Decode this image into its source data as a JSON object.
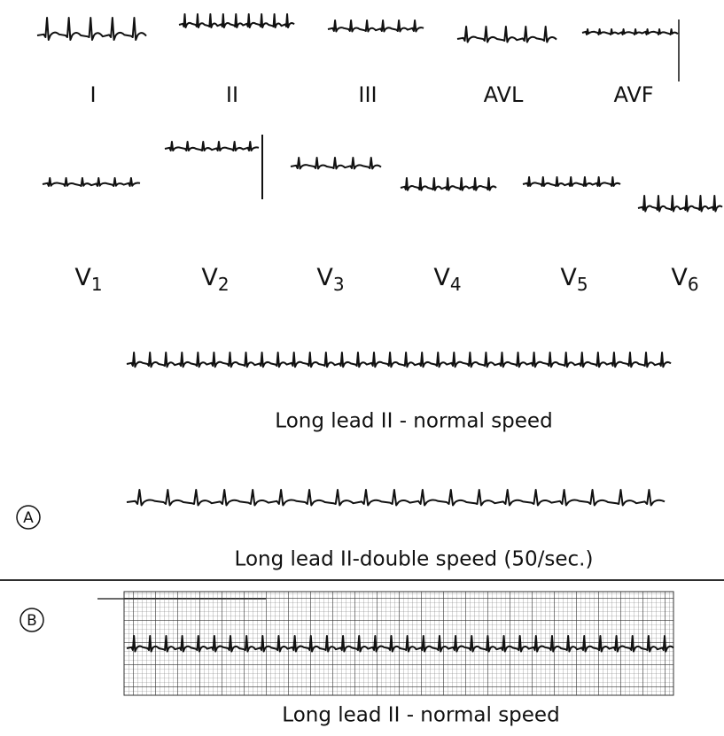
{
  "limb_leads": [
    "I",
    "II",
    "III",
    "AVL",
    "AVF"
  ],
  "chest_leads": [
    {
      "base": "V",
      "sub": "1"
    },
    {
      "base": "V",
      "sub": "2"
    },
    {
      "base": "V",
      "sub": "3"
    },
    {
      "base": "V",
      "sub": "4"
    },
    {
      "base": "V",
      "sub": "5"
    },
    {
      "base": "V",
      "sub": "6"
    }
  ],
  "panel_a": {
    "label": "A",
    "caption_normal": "Long lead II - normal speed",
    "caption_double": "Long lead II-double speed (50/sec.)"
  },
  "panel_b": {
    "label": "B",
    "caption": "Long lead II - normal speed"
  }
}
